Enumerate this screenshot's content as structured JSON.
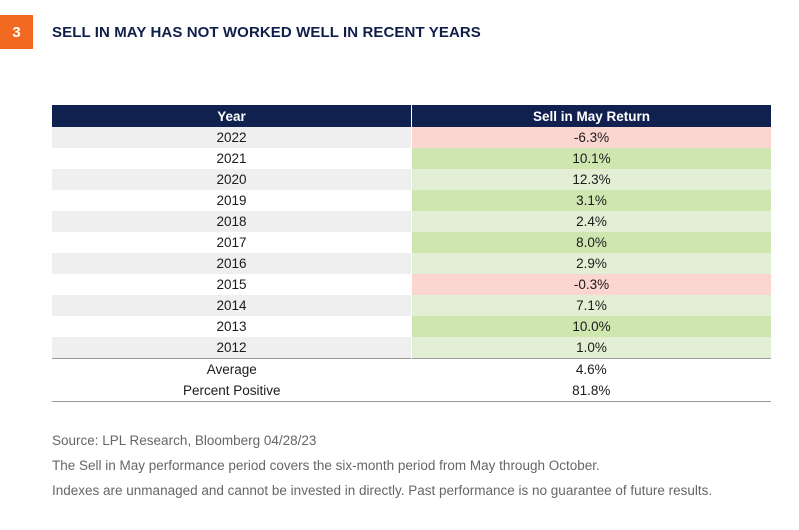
{
  "badge": "3",
  "title": "SELL IN MAY HAS NOT WORKED WELL IN RECENT YEARS",
  "colors": {
    "badge": "#f26a21",
    "header": "#10204f",
    "title": "#0f1f4b",
    "negative": "#fbd5d0",
    "strong_positive": "#cfe6b0",
    "weak_positive": "#e2efd4"
  },
  "chart_data": {
    "type": "table",
    "columns": [
      "Year",
      "Sell in May Return"
    ],
    "rows": [
      {
        "year": "2022",
        "return": "-6.3%",
        "value": -6.3,
        "shade": "negative"
      },
      {
        "year": "2021",
        "return": "10.1%",
        "value": 10.1,
        "shade": "strong_positive"
      },
      {
        "year": "2020",
        "return": "12.3%",
        "value": 12.3,
        "shade": "weak_positive"
      },
      {
        "year": "2019",
        "return": "3.1%",
        "value": 3.1,
        "shade": "strong_positive"
      },
      {
        "year": "2018",
        "return": "2.4%",
        "value": 2.4,
        "shade": "weak_positive"
      },
      {
        "year": "2017",
        "return": "8.0%",
        "value": 8.0,
        "shade": "strong_positive"
      },
      {
        "year": "2016",
        "return": "2.9%",
        "value": 2.9,
        "shade": "weak_positive"
      },
      {
        "year": "2015",
        "return": "-0.3%",
        "value": -0.3,
        "shade": "negative"
      },
      {
        "year": "2014",
        "return": "7.1%",
        "value": 7.1,
        "shade": "weak_positive"
      },
      {
        "year": "2013",
        "return": "10.0%",
        "value": 10.0,
        "shade": "strong_positive"
      },
      {
        "year": "2012",
        "return": "1.0%",
        "value": 1.0,
        "shade": "weak_positive"
      }
    ],
    "summary": [
      {
        "label": "Average",
        "value": "4.6%"
      },
      {
        "label": "Percent Positive",
        "value": "81.8%"
      }
    ]
  },
  "notes": [
    "Source: LPL Research, Bloomberg  04/28/23",
    "The Sell in May performance period covers the six-month period from May through October.",
    "Indexes are unmanaged and cannot be invested in directly. Past performance is no guarantee of future results."
  ]
}
